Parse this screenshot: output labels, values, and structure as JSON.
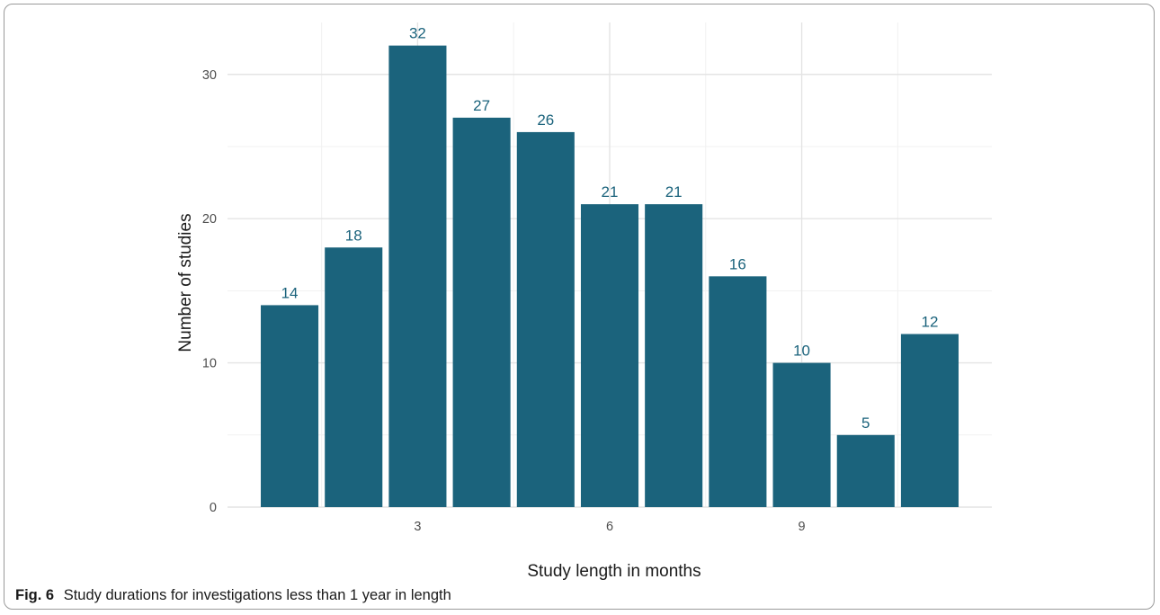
{
  "figure": {
    "label": "Fig. 6",
    "caption": "Study durations for investigations less than 1 year in length"
  },
  "colors": {
    "bar": "#1b637c",
    "bar_label": "#1b637c",
    "grid_major": "#e4e4e4",
    "grid_minor": "#f1f1f1",
    "tick_text": "#4d4d4d",
    "axis_title": "#1a1a1a"
  },
  "chart_data": {
    "type": "bar",
    "title": "",
    "xlabel": "Study length in months",
    "ylabel": "Number of studies",
    "x": [
      1,
      2,
      3,
      4,
      5,
      6,
      7,
      8,
      9,
      10,
      11
    ],
    "values": [
      14,
      18,
      32,
      27,
      26,
      21,
      21,
      16,
      10,
      5,
      12
    ],
    "data_labels": [
      "14",
      "18",
      "32",
      "27",
      "26",
      "21",
      "21",
      "16",
      "10",
      "5",
      "12"
    ],
    "x_ticks": [
      3,
      6,
      9
    ],
    "x_tick_labels": [
      "3",
      "6",
      "9"
    ],
    "y_ticks": [
      0,
      10,
      20,
      30
    ],
    "y_tick_labels": [
      "0",
      "10",
      "20",
      "30"
    ],
    "xlim": [
      0.03,
      11.97
    ],
    "ylim": [
      0,
      33.6
    ],
    "grid": true,
    "legend": "none"
  }
}
